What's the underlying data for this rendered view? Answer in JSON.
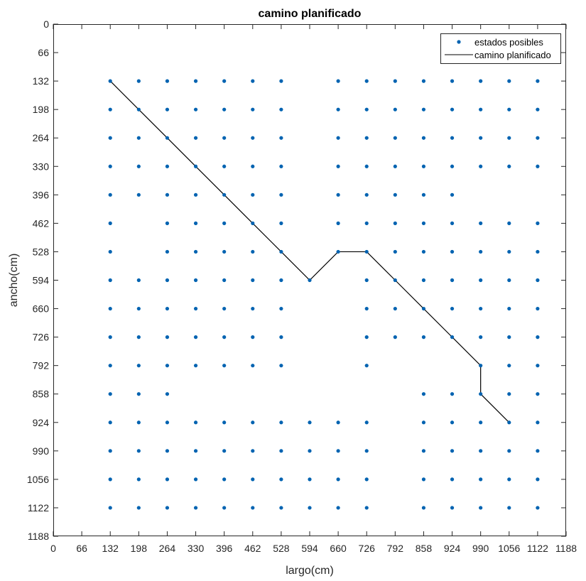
{
  "chart_data": {
    "type": "scatter",
    "title": "camino planificado",
    "xlabel": "largo(cm)",
    "ylabel": "ancho(cm)",
    "xlim": [
      0,
      1188
    ],
    "ylim": [
      0,
      1188
    ],
    "y_reversed": true,
    "grid": false,
    "legend_position": "top-right",
    "xticks": [
      0,
      66,
      132,
      198,
      264,
      330,
      396,
      462,
      528,
      594,
      660,
      726,
      792,
      858,
      924,
      990,
      1056,
      1122,
      1188
    ],
    "yticks": [
      0,
      66,
      132,
      198,
      264,
      330,
      396,
      462,
      528,
      594,
      660,
      726,
      792,
      858,
      924,
      990,
      1056,
      1122,
      1188
    ],
    "series": [
      {
        "name": "estados posibles",
        "kind": "points",
        "color": "#0063b1",
        "grid_x": [
          132,
          198,
          264,
          330,
          396,
          462,
          528,
          594,
          660,
          726,
          792,
          858,
          924,
          990,
          1056,
          1122
        ],
        "rows": [
          {
            "y": 132,
            "x": [
              132,
              198,
              264,
              330,
              396,
              462,
              528,
              660,
              726,
              792,
              858,
              924,
              990,
              1056,
              1122
            ]
          },
          {
            "y": 198,
            "x": [
              132,
              198,
              264,
              330,
              396,
              462,
              528,
              660,
              726,
              792,
              858,
              924,
              990,
              1056,
              1122
            ]
          },
          {
            "y": 264,
            "x": [
              132,
              198,
              264,
              330,
              396,
              462,
              528,
              660,
              726,
              792,
              858,
              924,
              990,
              1056,
              1122
            ]
          },
          {
            "y": 330,
            "x": [
              132,
              198,
              264,
              330,
              396,
              462,
              528,
              660,
              726,
              792,
              858,
              924,
              990,
              1056,
              1122
            ]
          },
          {
            "y": 396,
            "x": [
              132,
              198,
              264,
              330,
              396,
              462,
              528,
              660,
              726,
              792,
              858,
              924
            ]
          },
          {
            "y": 462,
            "x": [
              132,
              264,
              330,
              396,
              462,
              528,
              660,
              726,
              792,
              858,
              924,
              990,
              1056,
              1122
            ]
          },
          {
            "y": 528,
            "x": [
              132,
              264,
              330,
              396,
              462,
              528,
              660,
              726,
              792,
              858,
              924,
              990,
              1056,
              1122
            ]
          },
          {
            "y": 594,
            "x": [
              132,
              198,
              264,
              330,
              396,
              462,
              528,
              594,
              726,
              792,
              858,
              924,
              990,
              1056,
              1122
            ]
          },
          {
            "y": 660,
            "x": [
              132,
              198,
              264,
              330,
              396,
              462,
              528,
              726,
              792,
              858,
              924,
              990,
              1056,
              1122
            ]
          },
          {
            "y": 726,
            "x": [
              132,
              198,
              264,
              330,
              396,
              462,
              528,
              726,
              792,
              858,
              924,
              990,
              1056,
              1122
            ]
          },
          {
            "y": 792,
            "x": [
              132,
              198,
              264,
              330,
              396,
              462,
              528,
              726,
              990,
              1056,
              1122
            ]
          },
          {
            "y": 858,
            "x": [
              132,
              198,
              264,
              858,
              924,
              990,
              1056,
              1122
            ]
          },
          {
            "y": 924,
            "x": [
              132,
              198,
              264,
              330,
              396,
              462,
              528,
              594,
              660,
              726,
              858,
              924,
              990,
              1056,
              1122
            ]
          },
          {
            "y": 990,
            "x": [
              132,
              198,
              264,
              330,
              396,
              462,
              528,
              594,
              660,
              726,
              858,
              924,
              990,
              1056,
              1122
            ]
          },
          {
            "y": 1056,
            "x": [
              132,
              198,
              264,
              330,
              396,
              462,
              528,
              594,
              660,
              726,
              858,
              924,
              990,
              1056,
              1122
            ]
          },
          {
            "y": 1122,
            "x": [
              132,
              198,
              264,
              330,
              396,
              462,
              528,
              594,
              660,
              726,
              858,
              924,
              990,
              1056,
              1122
            ]
          }
        ]
      },
      {
        "name": "camino planificado",
        "kind": "line",
        "color": "#000000",
        "x": [
          132,
          198,
          264,
          330,
          396,
          462,
          528,
          594,
          660,
          726,
          792,
          858,
          924,
          990,
          990,
          1056
        ],
        "y": [
          132,
          198,
          264,
          330,
          396,
          462,
          528,
          594,
          528,
          528,
          594,
          660,
          726,
          792,
          858,
          924
        ]
      }
    ]
  }
}
